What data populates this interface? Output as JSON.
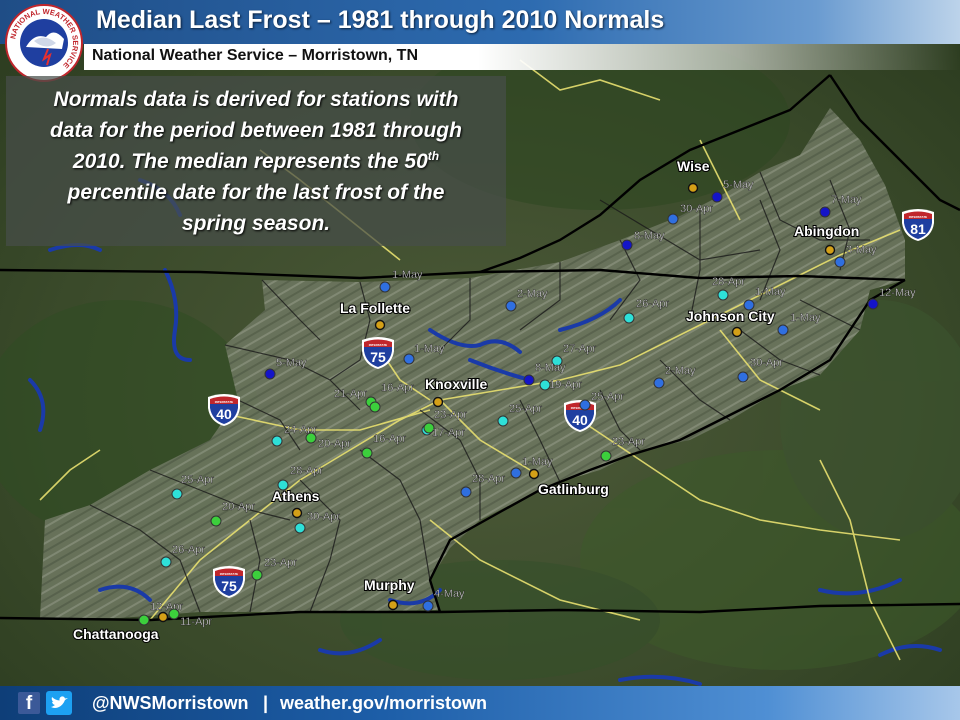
{
  "header": {
    "title": "Median Last Frost – 1981 through 2010 Normals",
    "subtitle": "National Weather Service – Morristown, TN"
  },
  "note": {
    "line1": "Normals data is derived for stations with",
    "line2": "data for the period between 1981 through",
    "line3a": "2010. The median represents the 50",
    "line3sup": "th",
    "line4": "percentile date for the last frost of the",
    "line5": "spring season."
  },
  "footer": {
    "handle": "@NWSMorristown",
    "separator": "|",
    "website": "weather.gov/morristown"
  },
  "logo": {
    "icon": "nws-logo-icon",
    "ring_text": "NATIONAL WEATHER SERVICE"
  },
  "shields": [
    {
      "route": "75",
      "header": "INTERSTATE"
    },
    {
      "route": "40",
      "header": "INTERSTATE"
    },
    {
      "route": "40",
      "header": "INTERSTATE"
    },
    {
      "route": "81",
      "header": "INTERSTATE"
    },
    {
      "route": "75",
      "header": "INTERSTATE"
    }
  ],
  "legend_colors": {
    "city": "#d4a017",
    "dark_blue": "#1414c8",
    "blue": "#2f6fe0",
    "cyan": "#2ee0d8",
    "green": "#3ccf3c"
  },
  "cities": [
    {
      "name": "Wise"
    },
    {
      "name": "Abingdon"
    },
    {
      "name": "La Follette"
    },
    {
      "name": "Johnson City"
    },
    {
      "name": "Knoxville"
    },
    {
      "name": "Gatlinburg"
    },
    {
      "name": "Athens"
    },
    {
      "name": "Murphy"
    },
    {
      "name": "Chattanooga"
    }
  ],
  "stations": [
    {
      "date": "5-May"
    },
    {
      "date": "30-Apr"
    },
    {
      "date": "7-May"
    },
    {
      "date": "8-May"
    },
    {
      "date": "3-May"
    },
    {
      "date": "1-May"
    },
    {
      "date": "2-May"
    },
    {
      "date": "28-Apr"
    },
    {
      "date": "1-May"
    },
    {
      "date": "12-May"
    },
    {
      "date": "26-Apr"
    },
    {
      "date": "1-May"
    },
    {
      "date": "5-May"
    },
    {
      "date": "1-May"
    },
    {
      "date": "27-Apr"
    },
    {
      "date": "8-May"
    },
    {
      "date": "19-Apr"
    },
    {
      "date": "2-May"
    },
    {
      "date": "30-Apr"
    },
    {
      "date": "21-Apr"
    },
    {
      "date": "16-Apr"
    },
    {
      "date": "23-Apr"
    },
    {
      "date": "25-Apr"
    },
    {
      "date": "25-Apr"
    },
    {
      "date": "17-Apr"
    },
    {
      "date": "24-Apr"
    },
    {
      "date": "20-Apr"
    },
    {
      "date": "16-Apr"
    },
    {
      "date": "23-Apr"
    },
    {
      "date": "1-May"
    },
    {
      "date": "28-Apr"
    },
    {
      "date": "28-Apr"
    },
    {
      "date": "30-Apr"
    },
    {
      "date": "20-Apr"
    },
    {
      "date": "25-Apr"
    },
    {
      "date": "26-Apr"
    },
    {
      "date": "23-Apr"
    },
    {
      "date": "4-May"
    },
    {
      "date": "12-Apr"
    },
    {
      "date": "11-Apr"
    }
  ]
}
